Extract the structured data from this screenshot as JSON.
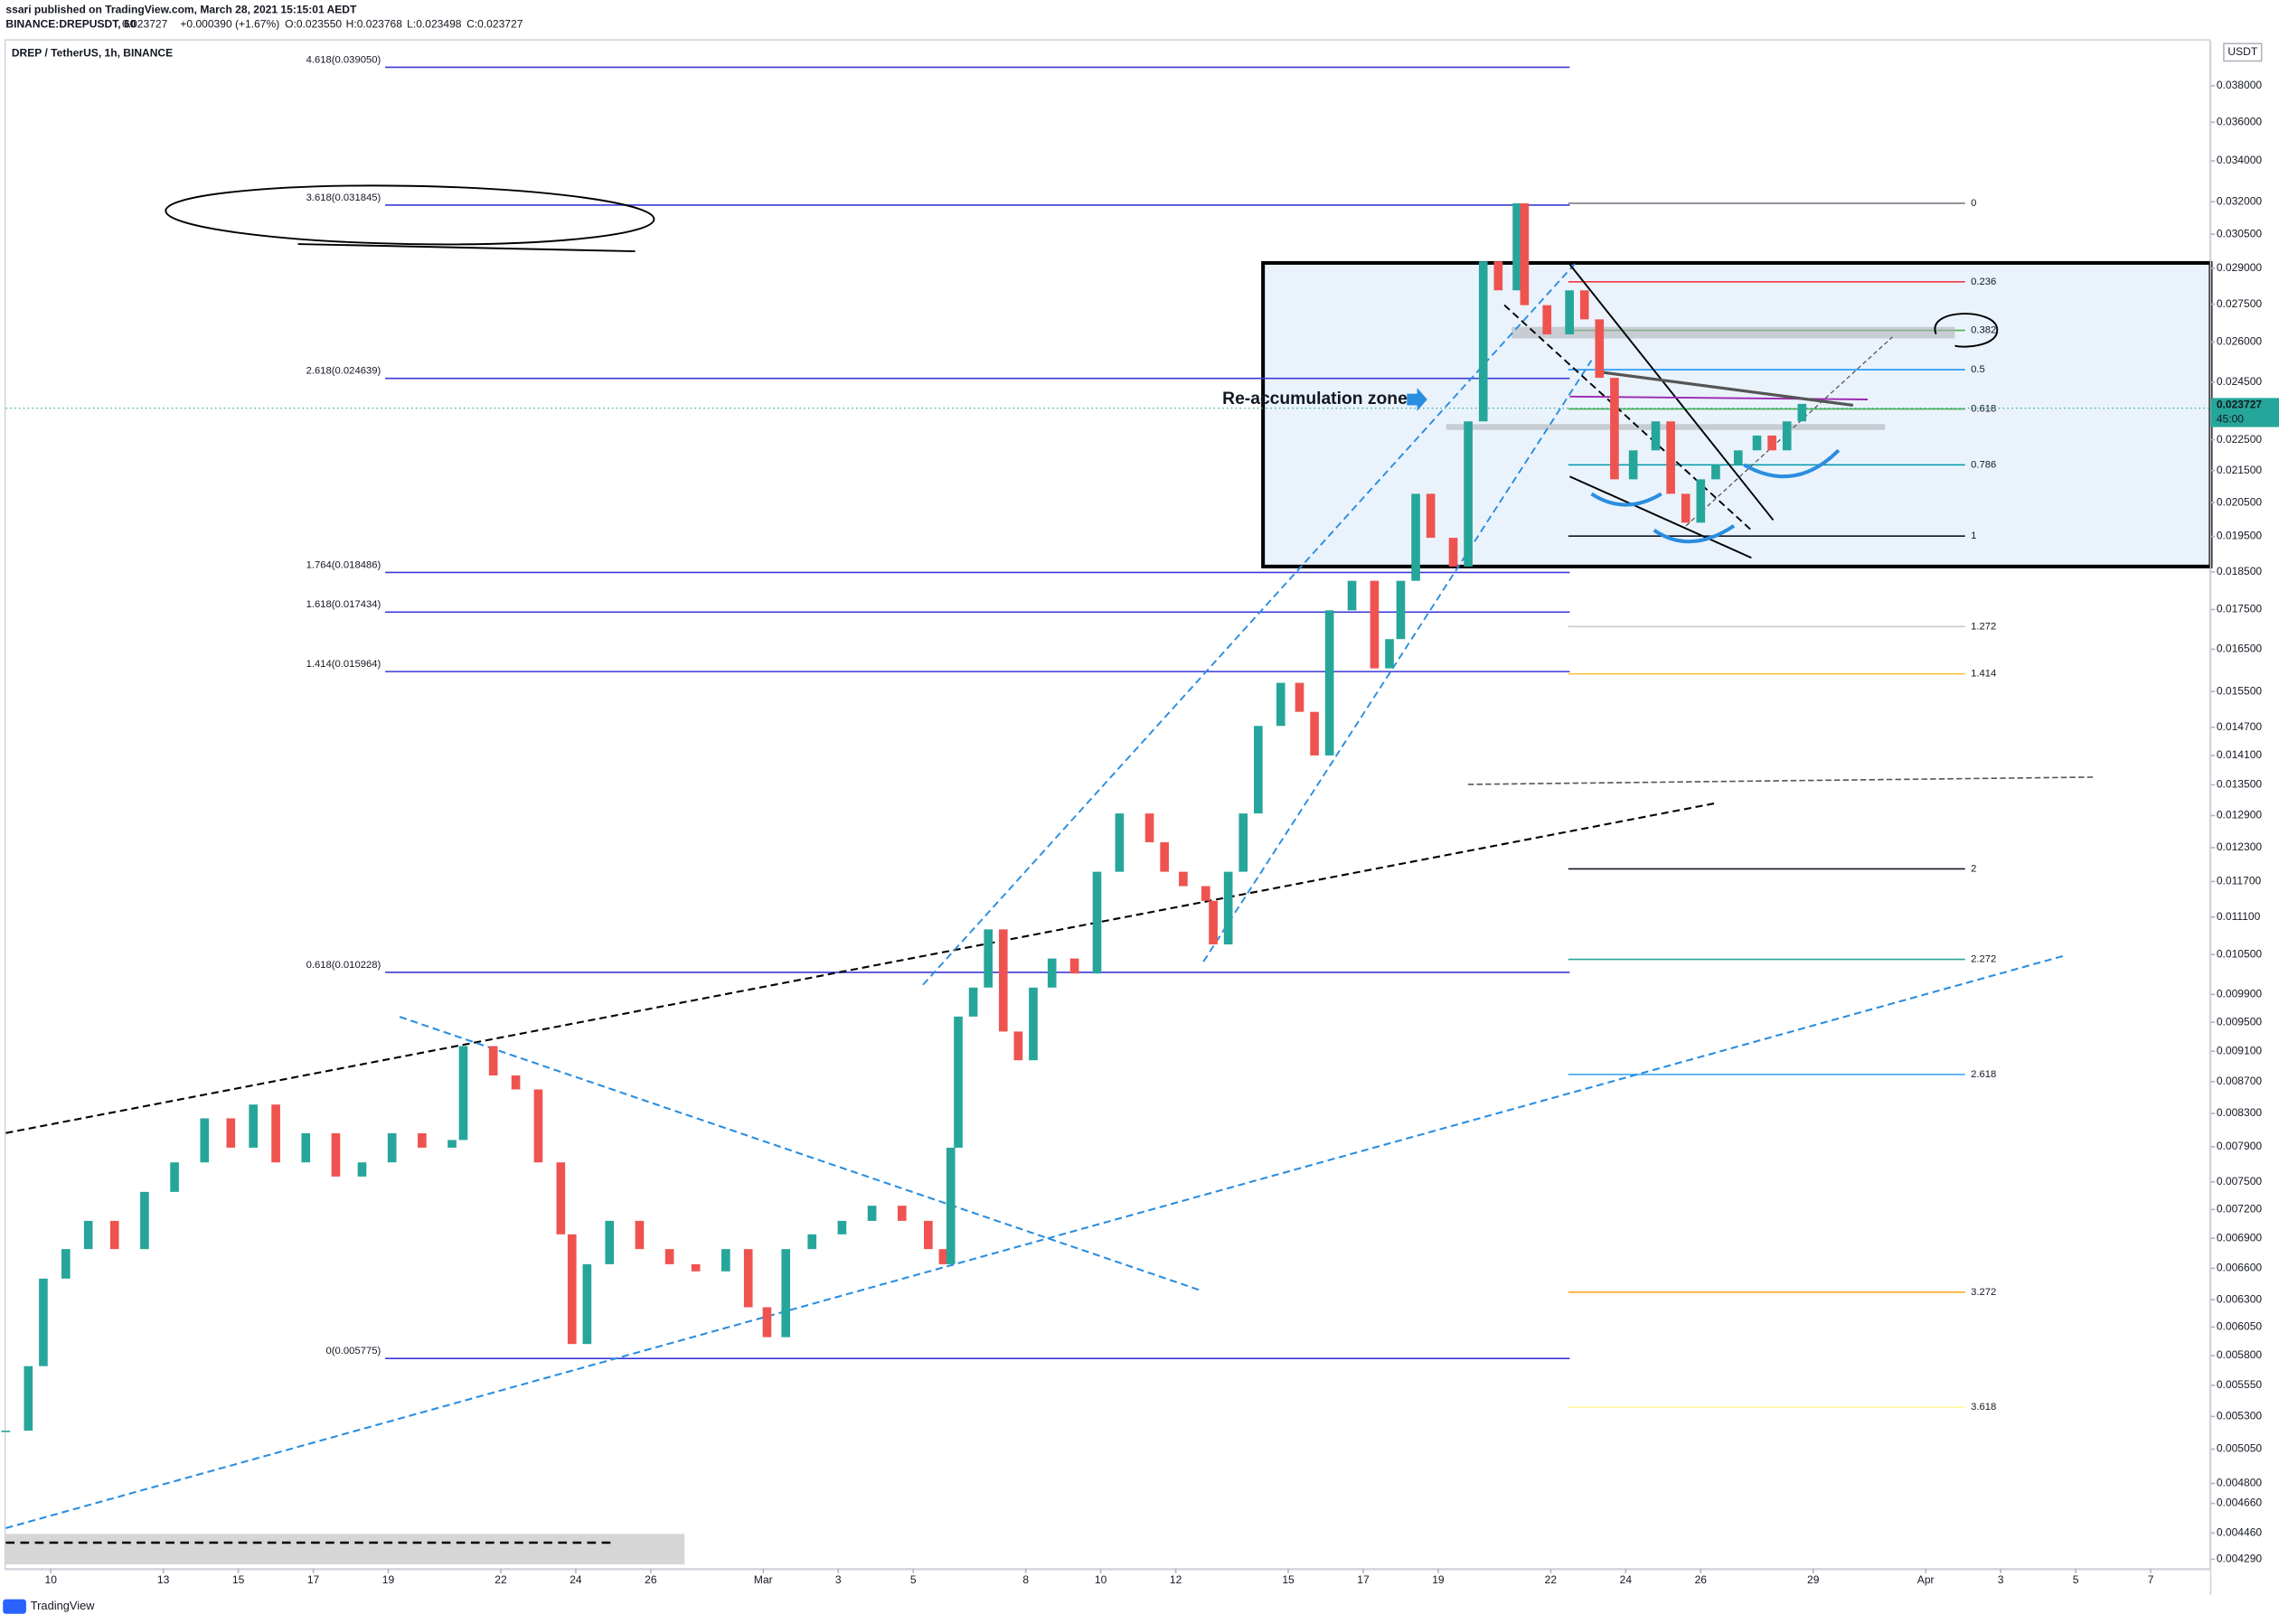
{
  "header": {
    "publisher": "ssari published on TradingView.com, March 28, 2021 15:15:01 AEDT",
    "symbol": "BINANCE:DREPUSDT, 60",
    "last": "0.023727",
    "change": "+0.000390 (+1.67%)",
    "open": "O:0.023550",
    "high": "H:0.023768",
    "low": "L:0.023498",
    "close": "C:0.023727"
  },
  "footer": "TradingView",
  "chart_data": {
    "type": "candlestick",
    "title": "DREP / TetherUS, 1h, BINANCE",
    "log_scale": true,
    "currency": "USDT",
    "price_label": "0.023727",
    "countdown": "45:00",
    "annotation": "Re-accumulation zone",
    "xlim": [
      -1.2,
      57.6
    ],
    "ylim": [
      0.00423,
      0.04062
    ],
    "xticks": [
      {
        "value": 0,
        "label": "10"
      },
      {
        "value": 3,
        "label": "13"
      },
      {
        "value": 5,
        "label": "15"
      },
      {
        "value": 7,
        "label": "17"
      },
      {
        "value": 9,
        "label": "19"
      },
      {
        "value": 12,
        "label": "22"
      },
      {
        "value": 14,
        "label": "24"
      },
      {
        "value": 16,
        "label": "26"
      },
      {
        "value": 19,
        "label": "Mar"
      },
      {
        "value": 21,
        "label": "3"
      },
      {
        "value": 23,
        "label": "5"
      },
      {
        "value": 26,
        "label": "8"
      },
      {
        "value": 28,
        "label": "10"
      },
      {
        "value": 30,
        "label": "12"
      },
      {
        "value": 33,
        "label": "15"
      },
      {
        "value": 35,
        "label": "17"
      },
      {
        "value": 37,
        "label": "19"
      },
      {
        "value": 40,
        "label": "22"
      },
      {
        "value": 42,
        "label": "24"
      },
      {
        "value": 44,
        "label": "26"
      },
      {
        "value": 47,
        "label": "29"
      },
      {
        "value": 50,
        "label": "Apr"
      },
      {
        "value": 52,
        "label": "3"
      },
      {
        "value": 54,
        "label": "5"
      },
      {
        "value": 56,
        "label": "7"
      }
    ],
    "yticks": [
      {
        "value": 0.038,
        "label": "0.038000"
      },
      {
        "value": 0.036,
        "label": "0.036000"
      },
      {
        "value": 0.034,
        "label": "0.034000"
      },
      {
        "value": 0.032,
        "label": "0.032000"
      },
      {
        "value": 0.0305,
        "label": "0.030500"
      },
      {
        "value": 0.029,
        "label": "0.029000"
      },
      {
        "value": 0.0275,
        "label": "0.027500"
      },
      {
        "value": 0.026,
        "label": "0.026000"
      },
      {
        "value": 0.0245,
        "label": "0.024500"
      },
      {
        "value": 0.0225,
        "label": "0.022500"
      },
      {
        "value": 0.0215,
        "label": "0.021500"
      },
      {
        "value": 0.0205,
        "label": "0.020500"
      },
      {
        "value": 0.0195,
        "label": "0.019500"
      },
      {
        "value": 0.0185,
        "label": "0.018500"
      },
      {
        "value": 0.0175,
        "label": "0.017500"
      },
      {
        "value": 0.0165,
        "label": "0.016500"
      },
      {
        "value": 0.0155,
        "label": "0.015500"
      },
      {
        "value": 0.0147,
        "label": "0.014700"
      },
      {
        "value": 0.0141,
        "label": "0.014100"
      },
      {
        "value": 0.0135,
        "label": "0.013500"
      },
      {
        "value": 0.0129,
        "label": "0.012900"
      },
      {
        "value": 0.0123,
        "label": "0.012300"
      },
      {
        "value": 0.0117,
        "label": "0.011700"
      },
      {
        "value": 0.0111,
        "label": "0.011100"
      },
      {
        "value": 0.0105,
        "label": "0.010500"
      },
      {
        "value": 0.0099,
        "label": "0.009900"
      },
      {
        "value": 0.0095,
        "label": "0.009500"
      },
      {
        "value": 0.0091,
        "label": "0.009100"
      },
      {
        "value": 0.0087,
        "label": "0.008700"
      },
      {
        "value": 0.0083,
        "label": "0.008300"
      },
      {
        "value": 0.0079,
        "label": "0.007900"
      },
      {
        "value": 0.0075,
        "label": "0.007500"
      },
      {
        "value": 0.0072,
        "label": "0.007200"
      },
      {
        "value": 0.0069,
        "label": "0.006900"
      },
      {
        "value": 0.0066,
        "label": "0.006600"
      },
      {
        "value": 0.0063,
        "label": "0.006300"
      },
      {
        "value": 0.00605,
        "label": "0.006050"
      },
      {
        "value": 0.0058,
        "label": "0.005800"
      },
      {
        "value": 0.00555,
        "label": "0.005550"
      },
      {
        "value": 0.0053,
        "label": "0.005300"
      },
      {
        "value": 0.00505,
        "label": "0.005050"
      },
      {
        "value": 0.0048,
        "label": "0.004800"
      },
      {
        "value": 0.00466,
        "label": "0.004660"
      },
      {
        "value": 0.00446,
        "label": "0.004460"
      },
      {
        "value": 0.00429,
        "label": "0.004290"
      }
    ],
    "x": [
      -1.2,
      -0.6,
      -0.2,
      0.4,
      1.0,
      1.7,
      2.5,
      3.3,
      4.1,
      4.8,
      5.4,
      6.0,
      6.8,
      7.6,
      8.3,
      9.1,
      9.9,
      10.7,
      11.0,
      11.8,
      12.4,
      13.0,
      13.6,
      13.9,
      14.3,
      14.9,
      15.7,
      16.5,
      17.2,
      18.0,
      18.6,
      19.1,
      19.6,
      20.3,
      21.1,
      21.9,
      22.7,
      23.4,
      23.8,
      24.0,
      24.2,
      24.6,
      25.0,
      25.4,
      25.8,
      26.2,
      26.7,
      27.3,
      27.9,
      28.5,
      29.3,
      29.7,
      30.2,
      30.8,
      31.0,
      31.4,
      31.8,
      32.2,
      32.8,
      33.3,
      33.7,
      34.1,
      34.7,
      35.3,
      35.7,
      36.0,
      36.4,
      36.8,
      37.4,
      37.8,
      38.2,
      38.6,
      39.1,
      39.3,
      39.9,
      40.5,
      40.9,
      41.3,
      41.7,
      42.2,
      42.8,
      43.2,
      43.6,
      44.0,
      44.4,
      45.0,
      45.5,
      45.9,
      46.3,
      46.7
    ],
    "series": [
      {
        "name": "DREPUSDT",
        "up_color": "#26a69a",
        "down_color": "#ef5350",
        "values": [
          0.00519,
          0.00571,
          0.0065,
          0.00679,
          0.00708,
          0.00679,
          0.00739,
          0.00772,
          0.00824,
          0.00789,
          0.00841,
          0.00772,
          0.00806,
          0.00756,
          0.00772,
          0.00806,
          0.00789,
          0.00798,
          0.00917,
          0.00878,
          0.0086,
          0.00772,
          0.00694,
          0.0059,
          0.00664,
          0.00708,
          0.00679,
          0.00664,
          0.00657,
          0.00679,
          0.00623,
          0.00596,
          0.00679,
          0.00694,
          0.00708,
          0.00724,
          0.00708,
          0.00679,
          0.00664,
          0.00789,
          0.00958,
          0.01,
          0.0109,
          0.00937,
          0.00898,
          0.01,
          0.01044,
          0.01021,
          0.01187,
          0.01294,
          0.0124,
          0.01187,
          0.01162,
          0.01137,
          0.01066,
          0.01187,
          0.01294,
          0.01473,
          0.0157,
          0.01504,
          0.0141,
          0.01748,
          0.01826,
          0.01604,
          0.01675,
          0.01826,
          0.02077,
          0.01946,
          0.01865,
          0.02312,
          0.0293,
          0.02807,
          0.03193,
          0.02746,
          0.0263,
          0.02807,
          0.02689,
          0.02466,
          0.02122,
          0.02215,
          0.02312,
          0.02077,
          0.0199,
          0.02122,
          0.02168,
          0.02215,
          0.02264,
          0.02215,
          0.02312,
          0.023727
        ]
      }
    ],
    "fib_extension": {
      "color": "#3a3ad6",
      "levels": [
        {
          "label": "4.618(0.039050)",
          "price": 0.03905
        },
        {
          "label": "3.618(0.031845)",
          "price": 0.031845
        },
        {
          "label": "2.618(0.024639)",
          "price": 0.024639
        },
        {
          "label": "1.764(0.018486)",
          "price": 0.018486
        },
        {
          "label": "1.618(0.017434)",
          "price": 0.017434
        },
        {
          "label": "1.414(0.015964)",
          "price": 0.015964
        },
        {
          "label": "0.618(0.010228)",
          "price": 0.010228
        },
        {
          "label": "0(0.005775)",
          "price": 0.005775
        }
      ]
    },
    "fib_retracement": {
      "anchors": [
        0.03193,
        0.01951
      ],
      "levels": [
        0,
        0.236,
        0.382,
        0.5,
        0.618,
        0.786,
        1,
        1.272,
        1.414,
        2,
        2.272,
        2.618,
        3.272,
        3.618
      ],
      "colors": [
        "#787b86",
        "#f23645",
        "#4caf50",
        "#2196f3",
        "#4caf50",
        "#0097a7",
        "#131722",
        "#c8c8c8",
        "#fbc02d",
        "#131722",
        "#26a69a",
        "#42a5f5",
        "#f9a825",
        "#fff59d"
      ]
    }
  }
}
